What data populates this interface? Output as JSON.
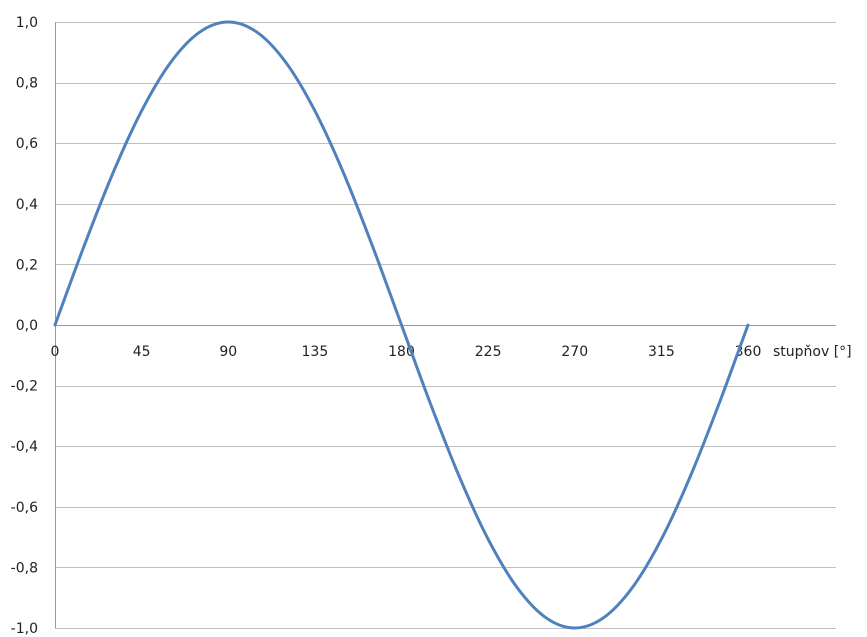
{
  "chart_data": {
    "type": "line",
    "title": "",
    "xlabel": "stupňov [°]",
    "ylabel": "",
    "xlim": [
      0,
      360
    ],
    "ylim": [
      -1.0,
      1.0
    ],
    "x_ticks": [
      0,
      45,
      90,
      135,
      180,
      225,
      270,
      315,
      360
    ],
    "x_tick_labels": [
      "0",
      "45",
      "90",
      "135",
      "180",
      "225",
      "270",
      "315",
      "360"
    ],
    "y_ticks": [
      1.0,
      0.8,
      0.6,
      0.4,
      0.2,
      0.0,
      -0.2,
      -0.4,
      -0.6,
      -0.8,
      -1.0
    ],
    "y_tick_labels": [
      "1,0",
      "0,8",
      "0,6",
      "0,4",
      "0,2",
      "0,0",
      "-0,2",
      "-0,4",
      "-0,6",
      "-0,8",
      "-1,0"
    ],
    "grid": true,
    "legend": "none",
    "series": [
      {
        "color": "#4f81bd",
        "x": [
          0,
          15,
          30,
          45,
          60,
          75,
          90,
          105,
          120,
          135,
          150,
          165,
          180,
          195,
          210,
          225,
          240,
          255,
          270,
          285,
          300,
          315,
          330,
          345,
          360
        ],
        "y": [
          0,
          0.259,
          0.5,
          0.707,
          0.866,
          0.966,
          1.0,
          0.966,
          0.866,
          0.707,
          0.5,
          0.259,
          0,
          -0.259,
          -0.5,
          -0.707,
          -0.866,
          -0.966,
          -1.0,
          -0.966,
          -0.866,
          -0.707,
          -0.5,
          -0.259,
          0
        ]
      }
    ]
  }
}
